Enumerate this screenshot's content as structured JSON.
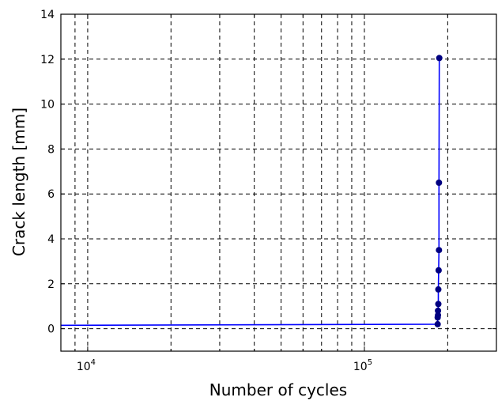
{
  "chart_data": {
    "type": "line",
    "title": "",
    "xlabel": "Number of cycles",
    "ylabel": "Crack length [mm]",
    "xscale": "log",
    "xlim": [
      8000,
      300000
    ],
    "ylim": [
      -1,
      14
    ],
    "grid": true,
    "grid_style": "dashed",
    "x_major_ticks": [
      {
        "base": "10",
        "exp": "4",
        "value": 10000
      },
      {
        "base": "10",
        "exp": "5",
        "value": 100000
      }
    ],
    "y_ticks": [
      0,
      2,
      4,
      6,
      8,
      10,
      12,
      14
    ],
    "series": [
      {
        "color": "#0000ff",
        "marker": "circle",
        "marker_color": "#000080",
        "x": [
          0,
          184000,
          184000,
          184500,
          184500,
          185000,
          185000,
          185500,
          186000,
          186000,
          186500,
          187000
        ],
        "y": [
          0.15,
          0.2,
          0.5,
          0.6,
          0.8,
          1.1,
          1.75,
          2.6,
          3.5,
          6.5,
          12.05,
          12.05
        ],
        "marker_x": [
          184000,
          184000,
          184500,
          184500,
          185000,
          185000,
          185500,
          186000,
          186000,
          186500
        ],
        "marker_y": [
          0.2,
          0.5,
          0.6,
          0.8,
          1.1,
          1.75,
          2.6,
          3.5,
          6.5,
          12.05
        ]
      }
    ]
  }
}
